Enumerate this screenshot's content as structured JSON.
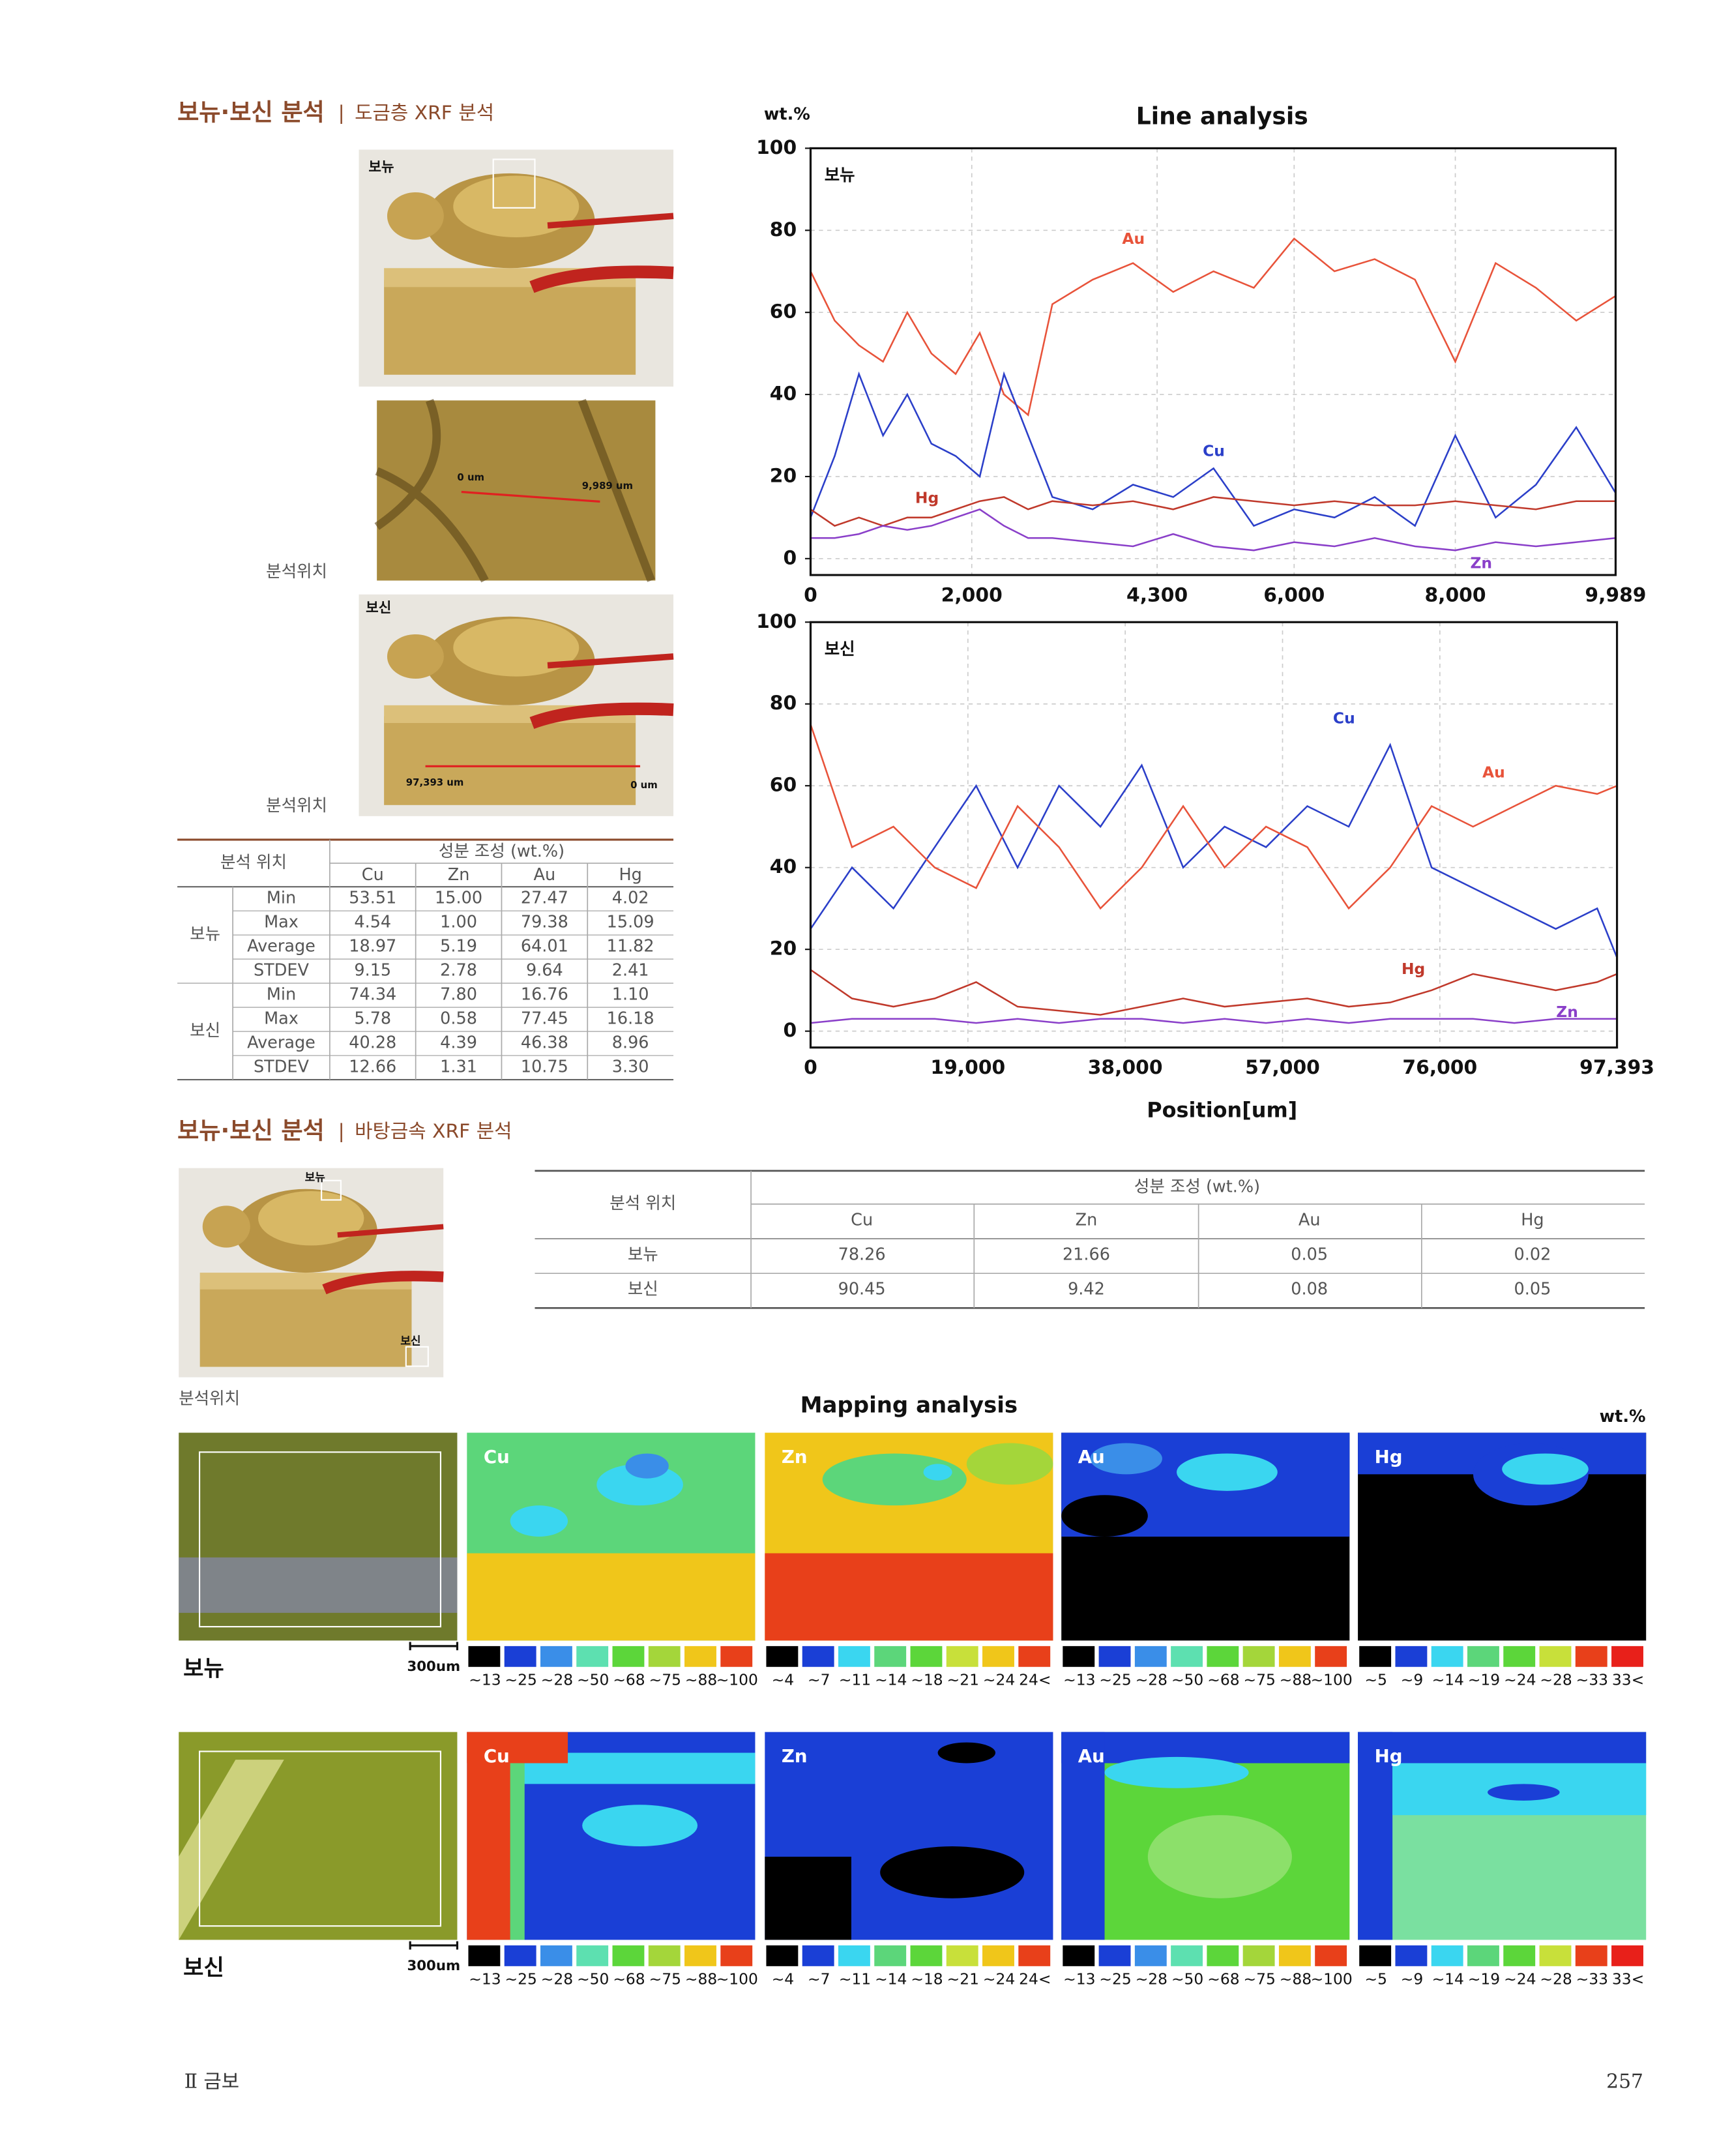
{
  "section1": {
    "title": "보뉴·보신 분석",
    "subtitle": "도금층 XRF 분석"
  },
  "photos1": {
    "top_label": "보뉴",
    "detail_start": "0 um",
    "detail_end": "9,989 um",
    "bottom_label": "보신",
    "bottom_start": "97,393 um",
    "bottom_end": "0 um",
    "caption": "분석위치"
  },
  "table1": {
    "header_location": "분석 위치",
    "header_composition": "성분 조성 (wt.%)",
    "columns": [
      "Cu",
      "Zn",
      "Au",
      "Hg"
    ],
    "groups": [
      {
        "name": "보뉴",
        "rows": [
          {
            "stat": "Min",
            "values": [
              "53.51",
              "15.00",
              "27.47",
              "4.02"
            ]
          },
          {
            "stat": "Max",
            "values": [
              "4.54",
              "1.00",
              "79.38",
              "15.09"
            ]
          },
          {
            "stat": "Average",
            "values": [
              "18.97",
              "5.19",
              "64.01",
              "11.82"
            ]
          },
          {
            "stat": "STDEV",
            "values": [
              "9.15",
              "2.78",
              "9.64",
              "2.41"
            ]
          }
        ]
      },
      {
        "name": "보신",
        "rows": [
          {
            "stat": "Min",
            "values": [
              "74.34",
              "7.80",
              "16.76",
              "1.10"
            ]
          },
          {
            "stat": "Max",
            "values": [
              "5.78",
              "0.58",
              "77.45",
              "16.18"
            ]
          },
          {
            "stat": "Average",
            "values": [
              "40.28",
              "4.39",
              "46.38",
              "8.96"
            ]
          },
          {
            "stat": "STDEV",
            "values": [
              "12.66",
              "1.31",
              "10.75",
              "3.30"
            ]
          }
        ]
      }
    ]
  },
  "chart_data": [
    {
      "type": "line",
      "title": "Line analysis",
      "y_label": "wt.%",
      "panel_label": "보뉴",
      "x": [
        0,
        300,
        600,
        900,
        1200,
        1500,
        1800,
        2100,
        2400,
        2700,
        3000,
        3500,
        4000,
        4500,
        5000,
        5500,
        6000,
        6500,
        7000,
        7500,
        8000,
        8500,
        9000,
        9500,
        9989
      ],
      "series": [
        {
          "name": "Au",
          "color": "#e8533a",
          "values": [
            70,
            58,
            52,
            48,
            60,
            50,
            45,
            55,
            40,
            35,
            62,
            68,
            72,
            65,
            70,
            66,
            78,
            70,
            73,
            68,
            48,
            72,
            66,
            58,
            64
          ]
        },
        {
          "name": "Cu",
          "color": "#2b3fc9",
          "values": [
            10,
            25,
            45,
            30,
            40,
            28,
            25,
            20,
            45,
            30,
            15,
            12,
            18,
            15,
            22,
            8,
            12,
            10,
            15,
            8,
            30,
            10,
            18,
            32,
            16
          ]
        },
        {
          "name": "Hg",
          "color": "#c0392b",
          "values": [
            12,
            8,
            10,
            8,
            10,
            10,
            12,
            14,
            15,
            12,
            14,
            13,
            14,
            12,
            15,
            14,
            13,
            14,
            13,
            13,
            14,
            13,
            12,
            14,
            14
          ]
        },
        {
          "name": "Zn",
          "color": "#8a3fc9",
          "values": [
            5,
            5,
            6,
            8,
            7,
            8,
            10,
            12,
            8,
            5,
            5,
            4,
            3,
            6,
            3,
            2,
            4,
            3,
            5,
            3,
            2,
            4,
            3,
            4,
            5
          ]
        }
      ],
      "xlim": [
        0,
        9989
      ],
      "ylim": [
        -4,
        100
      ],
      "xticks": [
        0,
        {
          "value": 2000,
          "label": "2,000"
        },
        {
          "value": 4300,
          "label": "4,300"
        },
        {
          "value": 6000,
          "label": "6,000"
        },
        {
          "value": 8000,
          "label": "8,000"
        },
        {
          "value": 9989,
          "label": "9,989"
        }
      ],
      "yticks": [
        0,
        20,
        40,
        60,
        80,
        100
      ],
      "grid": true
    },
    {
      "type": "line",
      "x_label": "Position[um]",
      "panel_label": "보신",
      "x": [
        0,
        5000,
        10000,
        15000,
        20000,
        25000,
        30000,
        35000,
        40000,
        45000,
        50000,
        55000,
        60000,
        65000,
        70000,
        75000,
        80000,
        85000,
        90000,
        95000,
        97393
      ],
      "series": [
        {
          "name": "Cu",
          "color": "#2b3fc9",
          "values": [
            25,
            40,
            30,
            45,
            60,
            40,
            60,
            50,
            65,
            40,
            50,
            45,
            55,
            50,
            70,
            40,
            35,
            30,
            25,
            30,
            18
          ]
        },
        {
          "name": "Au",
          "color": "#e8533a",
          "values": [
            75,
            45,
            50,
            40,
            35,
            55,
            45,
            30,
            40,
            55,
            40,
            50,
            45,
            30,
            40,
            55,
            50,
            55,
            60,
            58,
            60
          ]
        },
        {
          "name": "Hg",
          "color": "#c0392b",
          "values": [
            15,
            8,
            6,
            8,
            12,
            6,
            5,
            4,
            6,
            8,
            6,
            7,
            8,
            6,
            7,
            10,
            14,
            12,
            10,
            12,
            14
          ]
        },
        {
          "name": "Zn",
          "color": "#8a3fc9",
          "values": [
            2,
            3,
            3,
            3,
            2,
            3,
            2,
            3,
            3,
            2,
            3,
            2,
            3,
            2,
            3,
            3,
            3,
            2,
            3,
            3,
            3
          ]
        }
      ],
      "xlim": [
        0,
        97393
      ],
      "ylim": [
        -4,
        100
      ],
      "xticks": [
        0,
        {
          "value": 19000,
          "label": "19,000"
        },
        {
          "value": 38000,
          "label": "38,000"
        },
        {
          "value": 57000,
          "label": "57,000"
        },
        {
          "value": 76000,
          "label": "76,000"
        },
        {
          "value": 97393,
          "label": "97,393"
        }
      ],
      "yticks": [
        0,
        20,
        40,
        60,
        80,
        100
      ],
      "grid": true
    }
  ],
  "section2": {
    "title": "보뉴·보신 분석",
    "subtitle": "바탕금속 XRF 분석"
  },
  "photos2": {
    "top_label": "보뉴",
    "bottom_label": "보신",
    "caption": "분석위치"
  },
  "table2": {
    "header_location": "분석 위치",
    "header_composition": "성분 조성 (wt.%)",
    "columns": [
      "Cu",
      "Zn",
      "Au",
      "Hg"
    ],
    "rows": [
      {
        "name": "보뉴",
        "values": [
          "78.26",
          "21.66",
          "0.05",
          "0.02"
        ]
      },
      {
        "name": "보신",
        "values": [
          "90.45",
          "9.42",
          "0.08",
          "0.05"
        ]
      }
    ]
  },
  "mapping": {
    "title": "Mapping analysis",
    "unit": "wt.%",
    "elements": [
      "Cu",
      "Zn",
      "Au",
      "Hg"
    ],
    "scales": [
      {
        "labels": [
          "~13",
          "~25",
          "~28",
          "~50",
          "~68",
          "~75",
          "~88",
          "~100"
        ],
        "colors": [
          "#000000",
          "#1a3fd6",
          "#3a8ee8",
          "#5de0b0",
          "#5cd63a",
          "#a4d63a",
          "#f0c61a",
          "#e8401a"
        ]
      },
      {
        "labels": [
          "~4",
          "~7",
          "~11",
          "~14",
          "~18",
          "~21",
          "~24",
          "24<"
        ],
        "colors": [
          "#000000",
          "#1a3fd6",
          "#3ad6f0",
          "#5cd67a",
          "#5cd63a",
          "#c8e03a",
          "#f0c61a",
          "#e8401a"
        ]
      },
      {
        "labels": [
          "~13",
          "~25",
          "~28",
          "~50",
          "~68",
          "~75",
          "~88",
          "~100"
        ],
        "colors": [
          "#000000",
          "#1a3fd6",
          "#3a8ee8",
          "#5de0b0",
          "#5cd63a",
          "#a4d63a",
          "#f0c61a",
          "#e8401a"
        ]
      },
      {
        "labels": [
          "~5",
          "~9",
          "~14",
          "~19",
          "~24",
          "~28",
          "~33",
          "33<"
        ],
        "colors": [
          "#000000",
          "#1a3fd6",
          "#3ad6f0",
          "#5cd67a",
          "#5cd63a",
          "#c8e03a",
          "#e8401a",
          "#e8201a"
        ]
      }
    ],
    "rows": [
      {
        "label": "보뉴",
        "scale_bar": "300um"
      },
      {
        "label": "보신",
        "scale_bar": "300um"
      }
    ]
  },
  "footer": {
    "chapter": "Ⅱ 금보",
    "page": "257"
  }
}
